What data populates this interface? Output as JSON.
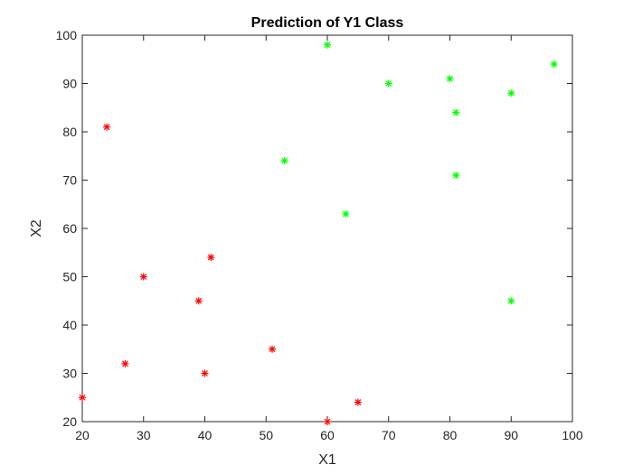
{
  "colors": {
    "class_0": "#ff0000",
    "class_1": "#00ff00",
    "axis": "#262626",
    "background": "#ffffff"
  },
  "chart_data": {
    "type": "scatter",
    "title": "Prediction of Y1 Class",
    "xlabel": "X1",
    "ylabel": "X2",
    "xlim": [
      20,
      100
    ],
    "ylim": [
      20,
      100
    ],
    "xticks": [
      20,
      30,
      40,
      50,
      60,
      70,
      80,
      90,
      100
    ],
    "yticks": [
      20,
      30,
      40,
      50,
      60,
      70,
      80,
      90,
      100
    ],
    "marker": "asterisk",
    "grid": false,
    "series": [
      {
        "color": "#ff0000",
        "points": [
          [
            24,
            81
          ],
          [
            30,
            50
          ],
          [
            41,
            54
          ],
          [
            39,
            45
          ],
          [
            27,
            32
          ],
          [
            40,
            30
          ],
          [
            51,
            35
          ],
          [
            20,
            25
          ],
          [
            65,
            24
          ],
          [
            60,
            20
          ]
        ]
      },
      {
        "color": "#00ff00",
        "points": [
          [
            60,
            98
          ],
          [
            70,
            90
          ],
          [
            80,
            91
          ],
          [
            97,
            94
          ],
          [
            90,
            88
          ],
          [
            81,
            84
          ],
          [
            53,
            74
          ],
          [
            81,
            71
          ],
          [
            63,
            63
          ],
          [
            90,
            45
          ]
        ]
      }
    ]
  }
}
